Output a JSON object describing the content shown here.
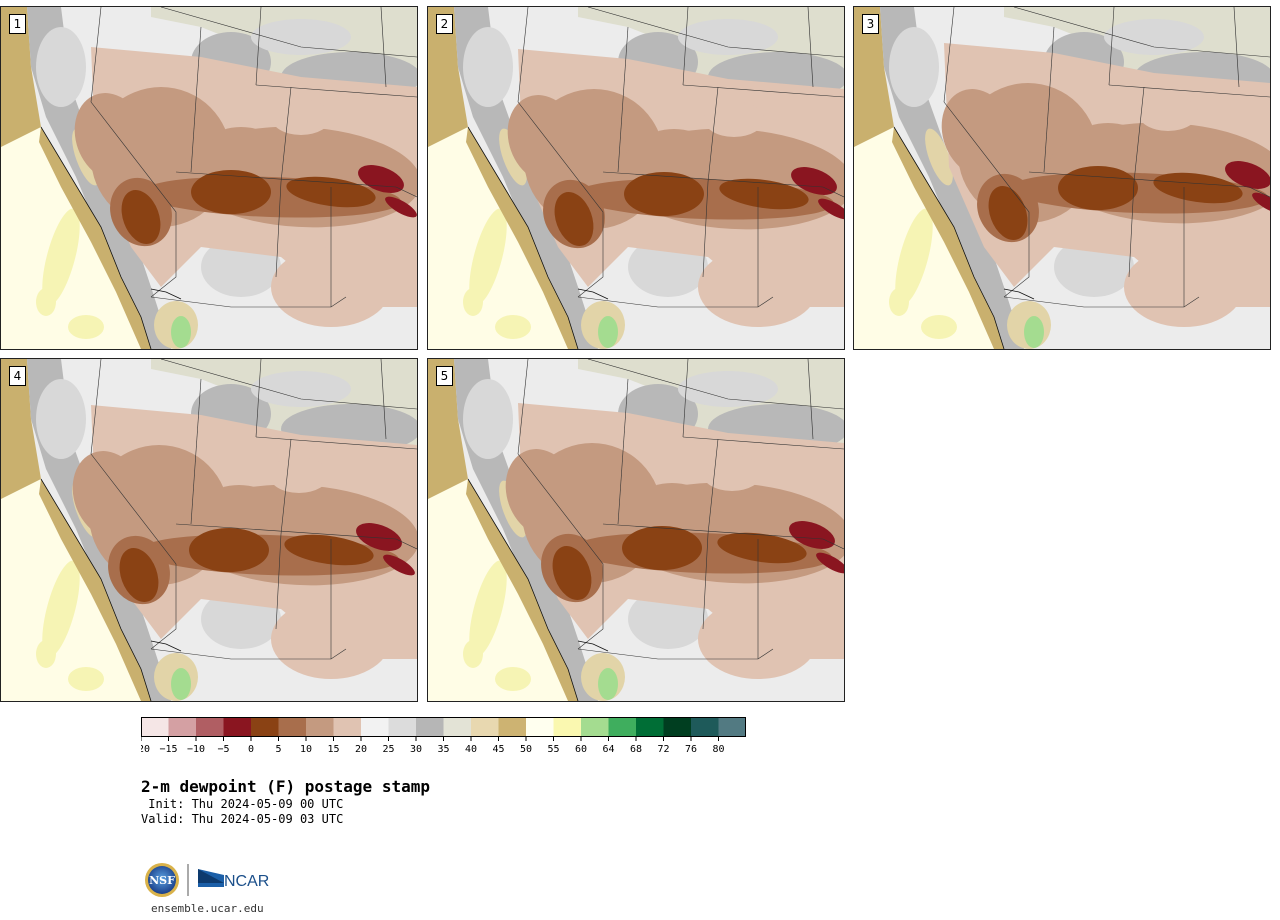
{
  "title": "2-m dewpoint (F) postage stamp",
  "init": " Init: Thu 2024-05-09 00 UTC",
  "valid": "Valid: Thu 2024-05-09 03 UTC",
  "url": "ensemble.ucar.edu",
  "logos": {
    "nsf_text": "NSF",
    "ncar_text": "NCAR"
  },
  "panels": [
    {
      "label": "1",
      "member": 1
    },
    {
      "label": "2",
      "member": 2
    },
    {
      "label": "3",
      "member": 3
    },
    {
      "label": "4",
      "member": 4
    },
    {
      "label": "5",
      "member": 5
    }
  ],
  "colorbar": {
    "ticks": [
      "−20",
      "−15",
      "−10",
      "−5",
      "0",
      "5",
      "10",
      "15",
      "20",
      "25",
      "30",
      "35",
      "40",
      "45",
      "50",
      "55",
      "60",
      "64",
      "68",
      "72",
      "76",
      "80"
    ],
    "colors": [
      "#f5e6e6",
      "#d4a0a3",
      "#b05e63",
      "#8a1520",
      "#8a4214",
      "#a86e4c",
      "#c49a80",
      "#e0c3b2",
      "#f2f2f2",
      "#dcdcdc",
      "#b6b6b6",
      "#e3e3d6",
      "#e8d8b0",
      "#cdb372",
      "#ffffef",
      "#faf8b0",
      "#a4dc90",
      "#3fae5e",
      "#006e36",
      "#003e20",
      "#1e5a5a",
      "#527a82"
    ]
  },
  "map_palette": {
    "ocean_dry": "#fffde6",
    "ocean_moist": "#f6f4b4",
    "coast_tan": "#c9b06e",
    "coast_light": "#e2d4a8",
    "mountain_gray": "#b8b8b8",
    "plateau_gray": "#d8d8d8",
    "high_plains": "#ececec",
    "north_olive": "#dedece",
    "desert_light": "#e0c3b2",
    "desert_mid": "#c49a80",
    "desert_dark": "#a86e4c",
    "desert_deepest": "#8a4214",
    "desert_red": "#8a1520",
    "green_pocket": "#a4dc90"
  }
}
